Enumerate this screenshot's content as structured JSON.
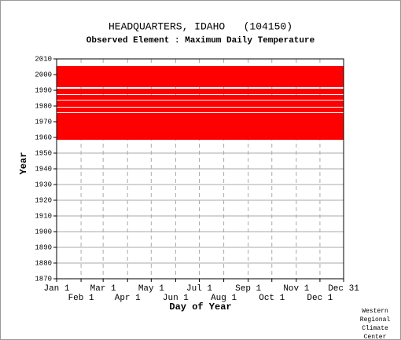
{
  "chart_data": {
    "type": "availability",
    "title": "HEADQUARTERS, IDAHO   (104150)",
    "subtitle": "Observed Element : Maximum Daily Temperature",
    "x_label": "Day of Year",
    "y_label": "Year",
    "xlim": [
      1,
      365
    ],
    "ylim": [
      1870,
      2010
    ],
    "xticks": [
      {
        "value": 1,
        "label": "Jan 1"
      },
      {
        "value": 32,
        "label": "Feb 1"
      },
      {
        "value": 60,
        "label": "Mar 1"
      },
      {
        "value": 91,
        "label": "Apr 1"
      },
      {
        "value": 121,
        "label": "May 1"
      },
      {
        "value": 152,
        "label": "Jun 1"
      },
      {
        "value": 182,
        "label": "Jul 1"
      },
      {
        "value": 213,
        "label": "Aug 1"
      },
      {
        "value": 244,
        "label": "Sep 1"
      },
      {
        "value": 274,
        "label": "Oct 1"
      },
      {
        "value": 305,
        "label": "Nov 1"
      },
      {
        "value": 335,
        "label": "Dec 1"
      },
      {
        "value": 365,
        "label": "Dec 31"
      }
    ],
    "yticks": [
      1870,
      1880,
      1890,
      1900,
      1910,
      1920,
      1930,
      1940,
      1950,
      1960,
      1970,
      1980,
      1990,
      2000,
      2010
    ],
    "color": "#ff0000",
    "segments": [
      {
        "days": [
          1,
          365
        ],
        "years": [
          1992,
          2005.5
        ]
      },
      {
        "days": [
          1,
          365
        ],
        "years": [
          1987.5,
          1991
        ]
      },
      {
        "days": [
          1,
          365
        ],
        "years": [
          1984,
          1987
        ]
      },
      {
        "days": [
          1,
          365
        ],
        "years": [
          1979.5,
          1983.5
        ]
      },
      {
        "days": [
          1,
          365
        ],
        "years": [
          1976,
          1979
        ]
      },
      {
        "days": [
          1,
          365
        ],
        "years": [
          1958.5,
          1975.5
        ]
      }
    ],
    "footer": [
      "Western",
      "Regional",
      "Climate",
      "Center"
    ]
  }
}
